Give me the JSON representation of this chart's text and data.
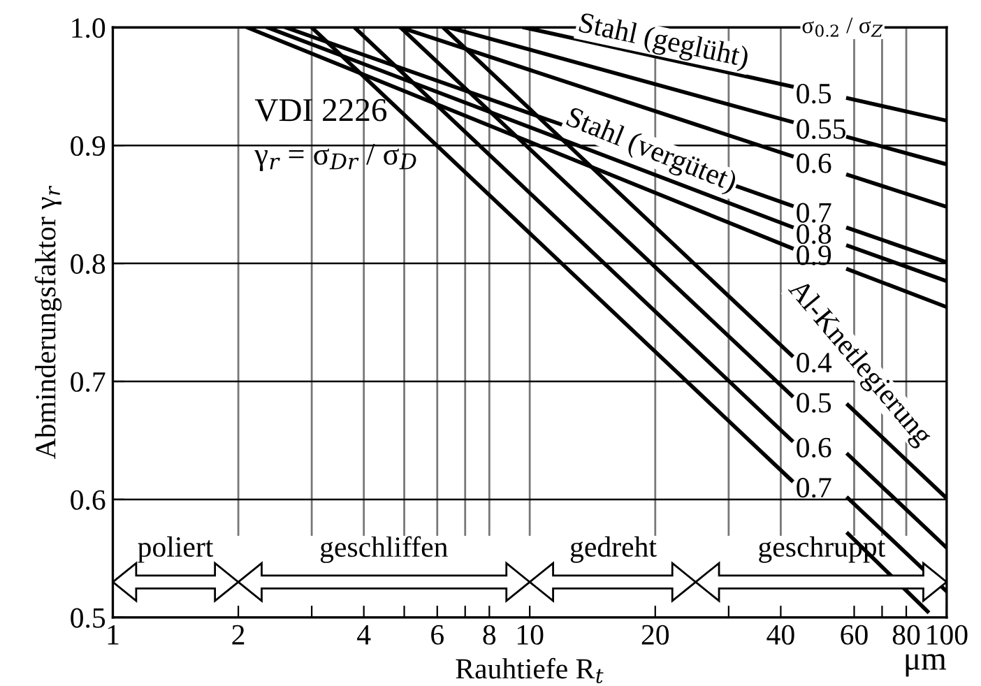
{
  "chart_data": {
    "type": "line",
    "xlabel": "Rauhtiefe R$_{t}$",
    "ylabel": "Abminderungsfaktor γ$_{r}$",
    "log": "x",
    "xlim": [
      1,
      100
    ],
    "ylim": [
      0.5,
      1.0
    ],
    "xticks": [
      1,
      2,
      {
        "value": 3,
        "label": null
      },
      4,
      {
        "value": 5,
        "label": null
      },
      6,
      {
        "value": 7,
        "label": null
      },
      8,
      10,
      20,
      {
        "value": 30,
        "label": null
      },
      40,
      60,
      {
        "value": 70,
        "label": null
      },
      80,
      100
    ],
    "yticks": [
      0.5,
      0.6,
      0.7,
      0.8,
      0.9,
      {
        "value": 1.0,
        "label": "1.0"
      }
    ],
    "grid": true,
    "series": [
      {
        "name": "0.5",
        "color": "#000000",
        "x": [
          9.7,
          42.5,
          50,
          58,
          100
        ],
        "values": [
          1.0,
          0.95,
          null,
          0.94,
          0.921
        ]
      },
      {
        "name": "0.55",
        "color": "#000000",
        "x": [
          6.4,
          42.5,
          50,
          58,
          100
        ],
        "values": [
          1.0,
          0.92,
          null,
          0.907,
          0.884
        ]
      },
      {
        "name": "0.6",
        "color": "#000000",
        "x": [
          4.9,
          42.5,
          50,
          58,
          100
        ],
        "values": [
          1.0,
          0.891,
          null,
          0.875,
          0.848
        ]
      },
      {
        "name": "0.7",
        "color": "#000000",
        "x": [
          2.6,
          42.5,
          50,
          58,
          100
        ],
        "values": [
          1.0,
          0.849,
          null,
          0.83,
          0.801
        ]
      },
      {
        "name": "0.8",
        "color": "#000000",
        "x": [
          2.35,
          42.5,
          50,
          58,
          100
        ],
        "values": [
          1.0,
          0.831,
          null,
          0.815,
          0.785
        ]
      },
      {
        "name": "0.9",
        "color": "#000000",
        "x": [
          2.1,
          42.5,
          50,
          58,
          100
        ],
        "values": [
          1.0,
          0.813,
          null,
          0.795,
          0.763
        ]
      },
      {
        "name": "0.4",
        "color": "#000000",
        "x": [
          6.2,
          42.5,
          50,
          58,
          100
        ],
        "values": [
          1.0,
          0.722,
          null,
          0.68,
          0.601
        ]
      },
      {
        "name": "0.5",
        "color": "#000000",
        "x": [
          4.9,
          42.5,
          50,
          58,
          100
        ],
        "values": [
          1.0,
          0.688,
          null,
          0.638,
          0.559
        ]
      },
      {
        "name": "0.6",
        "color": "#000000",
        "x": [
          3.8,
          42.5,
          50,
          58,
          100
        ],
        "values": [
          1.0,
          0.65,
          null,
          0.601,
          0.522
        ]
      },
      {
        "name": "0.7",
        "color": "#000000",
        "x": [
          3.0,
          42.5,
          50,
          58,
          90
        ],
        "values": [
          1.0,
          0.616,
          null,
          0.571,
          0.505
        ]
      }
    ],
    "annotations": [
      "poliert",
      "geschliffen",
      "gedreht",
      "geschruppt",
      "VDI 2226",
      "γ$_{r}$ = σ$_{Dr}$ / σ$_{D}$",
      "μm",
      "Stahl (geglüht)",
      "σ$_{0.2}$ / σ$_{Z}$",
      "Stahl (vergütet)",
      "Al-Knetlegierung"
    ]
  }
}
